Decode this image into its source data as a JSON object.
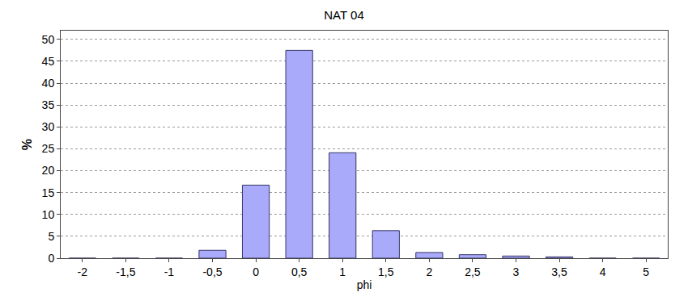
{
  "chart_data": {
    "type": "bar",
    "title": "NAT 04",
    "x_label": "phi",
    "y_label": "%",
    "categories": [
      "-2",
      "-1,5",
      "-1",
      "-0,5",
      "0",
      "0,5",
      "1",
      "1,5",
      "2",
      "2,5",
      "3",
      "3,5",
      "4",
      "5"
    ],
    "values": [
      0,
      0,
      0,
      1.8,
      16.7,
      47.5,
      24.1,
      6.3,
      1.3,
      0.8,
      0.5,
      0.3,
      0,
      0
    ],
    "color": "#aaaafa",
    "ylim": [
      0,
      52
    ],
    "yticks": [
      0,
      5,
      10,
      15,
      20,
      25,
      30,
      35,
      40,
      45,
      50
    ],
    "grid": true
  }
}
